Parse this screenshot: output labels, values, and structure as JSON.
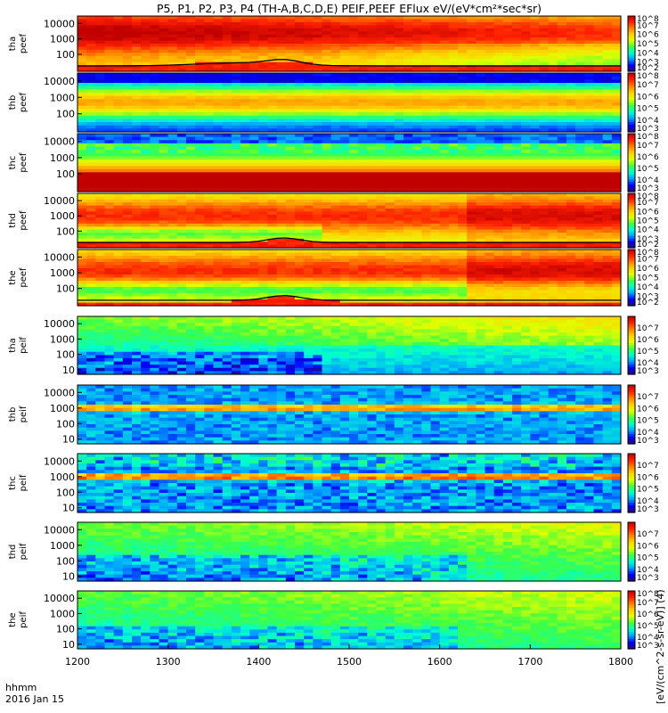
{
  "chart_data": {
    "type": "heatmap",
    "title": "P5, P1, P2, P3, P4 (TH-A,B,C,D,E) PEIF,PEEF EFlux eV/(eV*cm²*sec*sr)",
    "x_axis": {
      "range": [
        1200,
        1800
      ],
      "ticks": [
        "1200",
        "1300",
        "1400",
        "1500",
        "1600",
        "1700",
        "1800"
      ],
      "label_line1": "hhmm",
      "label_line2": "2016 Jan 15"
    },
    "y_scale": "log",
    "colorbar_units_ion": "[eV/(cm^2-s-sr-eV)] (4)",
    "colorbar_units_ion_text": "[eV/(cm^2-s-sr-eV)] (4)",
    "panels": [
      {
        "label_1": "tha",
        "label_2": "peef",
        "species": "electron",
        "ylim": [
          8,
          30000
        ],
        "yticks": [
          "10000",
          "1000",
          "100"
        ],
        "colorbar_range_exp": [
          2,
          8
        ],
        "colorbar_ticks": [
          "10^8",
          "10^7",
          "10^6",
          "10^5",
          "10^4",
          "10^3",
          "10^2"
        ],
        "profile": "elec_a"
      },
      {
        "label_1": "thb",
        "label_2": "peef",
        "species": "electron",
        "ylim": [
          8,
          30000
        ],
        "yticks": [
          "10000",
          "1000",
          "100"
        ],
        "colorbar_range_exp": [
          3,
          8
        ],
        "colorbar_ticks": [
          "10^8",
          "10^7",
          "10^6",
          "10^5",
          "10^4",
          "10^3"
        ],
        "profile": "elec_b"
      },
      {
        "label_1": "thc",
        "label_2": "peef",
        "species": "electron",
        "ylim": [
          8,
          30000
        ],
        "yticks": [
          "10000",
          "1000",
          "100"
        ],
        "colorbar_range_exp": [
          3,
          8
        ],
        "colorbar_ticks": [
          "10^8",
          "10^7",
          "10^6",
          "10^5",
          "10^4",
          "10^3"
        ],
        "profile": "elec_c"
      },
      {
        "label_1": "thd",
        "label_2": "peef",
        "species": "electron",
        "ylim": [
          8,
          30000
        ],
        "yticks": [
          "10000",
          "1000",
          "100"
        ],
        "colorbar_range_exp": [
          2,
          8
        ],
        "colorbar_ticks": [
          "10^8",
          "10^7",
          "10^6",
          "10^5",
          "10^4",
          "10^3",
          "10^2"
        ],
        "profile": "elec_d"
      },
      {
        "label_1": "the",
        "label_2": "peef",
        "species": "electron",
        "ylim": [
          8,
          30000
        ],
        "yticks": [
          "10000",
          "1000",
          "100"
        ],
        "colorbar_range_exp": [
          2,
          8
        ],
        "colorbar_ticks": [
          "10^8",
          "10^7",
          "10^6",
          "10^5",
          "10^4",
          "10^3",
          "10^2"
        ],
        "profile": "elec_e"
      },
      {
        "label_1": "tha",
        "label_2": "peif",
        "species": "ion",
        "ylim": [
          5,
          30000
        ],
        "yticks": [
          "10000",
          "1000",
          "100",
          "10"
        ],
        "colorbar_range_exp": [
          3,
          8
        ],
        "colorbar_ticks": [
          "10^7",
          "10^6",
          "10^5",
          "10^4",
          "10^3"
        ],
        "profile": "ion_a"
      },
      {
        "label_1": "thb",
        "label_2": "peif",
        "species": "ion",
        "ylim": [
          5,
          30000
        ],
        "yticks": [
          "10000",
          "1000",
          "100",
          "10"
        ],
        "colorbar_range_exp": [
          3,
          8
        ],
        "colorbar_ticks": [
          "10^7",
          "10^6",
          "10^5",
          "10^4",
          "10^3"
        ],
        "profile": "ion_b"
      },
      {
        "label_1": "thc",
        "label_2": "peif",
        "species": "ion",
        "ylim": [
          5,
          30000
        ],
        "yticks": [
          "10000",
          "1000",
          "100",
          "10"
        ],
        "colorbar_range_exp": [
          3,
          8
        ],
        "colorbar_ticks": [
          "10^7",
          "10^6",
          "10^5",
          "10^4",
          "10^3"
        ],
        "profile": "ion_c"
      },
      {
        "label_1": "thd",
        "label_2": "peif",
        "species": "ion",
        "ylim": [
          5,
          30000
        ],
        "yticks": [
          "10000",
          "1000",
          "100",
          "10"
        ],
        "colorbar_range_exp": [
          3,
          8
        ],
        "colorbar_ticks": [
          "10^7",
          "10^6",
          "10^5",
          "10^4",
          "10^3"
        ],
        "profile": "ion_d"
      },
      {
        "label_1": "the",
        "label_2": "peif",
        "species": "ion",
        "ylim": [
          5,
          30000
        ],
        "yticks": [
          "10000",
          "1000",
          "100",
          "10"
        ],
        "colorbar_range_exp": [
          3,
          8
        ],
        "colorbar_ticks": [
          "10^8",
          "10^7",
          "10^6",
          "10^5",
          "10^4",
          "10^3"
        ],
        "profile": "ion_e"
      }
    ],
    "spacecraft_potential_line": {
      "color": "#000000",
      "panels": [
        "tha peef",
        "thd peef",
        "the peef"
      ]
    },
    "colormap": [
      "#2a0c6e",
      "#0000ff",
      "#00a0ff",
      "#00ffd0",
      "#40ff40",
      "#e0ff00",
      "#ffd000",
      "#ff8000",
      "#ff2000",
      "#c00000"
    ]
  }
}
